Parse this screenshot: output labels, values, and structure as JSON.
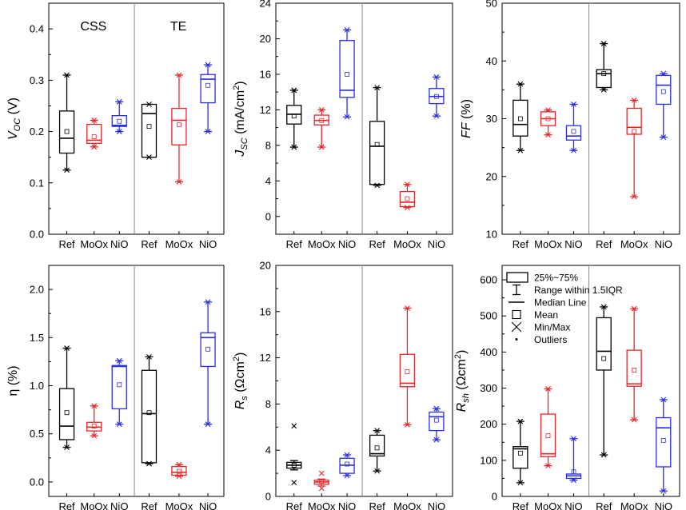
{
  "colors": {
    "Ref": "#000000",
    "MoOx": "#e8262a",
    "NiO": "#2b2ee0"
  },
  "chart_data": [
    {
      "type": "box",
      "id": "voc",
      "ylabel_main": "V",
      "ylabel_sub": "OC",
      "ylabel_unit": " (V)",
      "ylim": [
        0.0,
        0.45
      ],
      "yticks": [
        0.0,
        0.1,
        0.2,
        0.3,
        0.4
      ],
      "tick_labels": [
        "0.0",
        "0.1",
        "0.2",
        "0.3",
        "0.4"
      ],
      "divider": true,
      "group_labels": [
        "CSS",
        "TE"
      ],
      "categories": [
        "Ref",
        "MoOx",
        "NiO",
        "Ref",
        "MoOx",
        "NiO"
      ],
      "boxes": [
        {
          "cat": "Ref",
          "min": 0.125,
          "wlo": 0.125,
          "q1": 0.158,
          "median": 0.187,
          "q3": 0.24,
          "whi": 0.31,
          "max": 0.31,
          "mean": 0.2
        },
        {
          "cat": "MoOx",
          "min": 0.17,
          "wlo": 0.17,
          "q1": 0.177,
          "median": 0.183,
          "q3": 0.214,
          "whi": 0.222,
          "max": 0.222,
          "mean": 0.19
        },
        {
          "cat": "NiO",
          "min": 0.2,
          "wlo": 0.2,
          "q1": 0.21,
          "median": 0.212,
          "q3": 0.231,
          "whi": 0.258,
          "max": 0.258,
          "mean": 0.22
        },
        {
          "cat": "Ref",
          "min": 0.15,
          "wlo": 0.15,
          "q1": 0.15,
          "median": 0.235,
          "q3": 0.253,
          "whi": 0.253,
          "max": 0.253,
          "mean": 0.21
        },
        {
          "cat": "MoOx",
          "min": 0.102,
          "wlo": 0.102,
          "q1": 0.174,
          "median": 0.222,
          "q3": 0.245,
          "whi": 0.31,
          "max": 0.31,
          "mean": 0.213
        },
        {
          "cat": "NiO",
          "min": 0.2,
          "wlo": 0.2,
          "q1": 0.256,
          "median": 0.302,
          "q3": 0.311,
          "whi": 0.33,
          "max": 0.33,
          "mean": 0.29
        }
      ]
    },
    {
      "type": "box",
      "id": "jsc",
      "ylabel_main": "J",
      "ylabel_sub": "SC",
      "ylabel_unit": " (mA/cm",
      "ylabel_sup": "2",
      "ylabel_tail": ")",
      "ylim": [
        -2,
        24
      ],
      "yticks": [
        0,
        4,
        8,
        12,
        16,
        20,
        24
      ],
      "tick_labels": [
        "0",
        "4",
        "8",
        "12",
        "16",
        "20",
        "24"
      ],
      "divider": true,
      "group_labels": [],
      "categories": [
        "Ref",
        "MoOx",
        "NiO",
        "Ref",
        "MoOx",
        "NiO"
      ],
      "boxes": [
        {
          "cat": "Ref",
          "min": 7.8,
          "wlo": 7.8,
          "q1": 10.4,
          "median": 11.5,
          "q3": 12.5,
          "whi": 14.2,
          "max": 14.2,
          "mean": 11.3
        },
        {
          "cat": "MoOx",
          "min": 7.8,
          "wlo": 7.8,
          "q1": 10.3,
          "median": 10.8,
          "q3": 11.4,
          "whi": 12.0,
          "max": 12.0,
          "mean": 10.8
        },
        {
          "cat": "NiO",
          "min": 11.2,
          "wlo": 11.2,
          "q1": 13.4,
          "median": 14.2,
          "q3": 19.8,
          "whi": 21.0,
          "max": 21.0,
          "mean": 16.0
        },
        {
          "cat": "Ref",
          "min": 3.5,
          "wlo": 3.5,
          "q1": 3.6,
          "median": 7.9,
          "q3": 10.7,
          "whi": 14.5,
          "max": 14.5,
          "mean": 8.1
        },
        {
          "cat": "MoOx",
          "min": 1.0,
          "wlo": 1.0,
          "q1": 1.1,
          "median": 1.6,
          "q3": 2.8,
          "whi": 3.6,
          "max": 3.6,
          "mean": 2.0
        },
        {
          "cat": "NiO",
          "min": 11.3,
          "wlo": 11.3,
          "q1": 12.7,
          "median": 13.5,
          "q3": 14.4,
          "whi": 15.7,
          "max": 15.7,
          "mean": 13.5
        }
      ]
    },
    {
      "type": "box",
      "id": "ff",
      "ylabel_main": "FF",
      "ylabel_sub": "",
      "ylabel_unit": " (%)",
      "ylim": [
        10,
        50
      ],
      "yticks": [
        10,
        20,
        30,
        40,
        50
      ],
      "tick_labels": [
        "10",
        "20",
        "30",
        "40",
        "50"
      ],
      "divider": true,
      "group_labels": [],
      "categories": [
        "Ref",
        "MoOx",
        "NiO",
        "Ref",
        "MoOx",
        "NiO"
      ],
      "boxes": [
        {
          "cat": "Ref",
          "min": 24.5,
          "wlo": 24.5,
          "q1": 27.0,
          "median": 29.0,
          "q3": 33.2,
          "whi": 36.0,
          "max": 36.0,
          "mean": 30.0
        },
        {
          "cat": "MoOx",
          "min": 27.2,
          "wlo": 27.2,
          "q1": 28.8,
          "median": 30.0,
          "q3": 31.2,
          "whi": 31.5,
          "max": 31.5,
          "mean": 30.0
        },
        {
          "cat": "NiO",
          "min": 24.5,
          "wlo": 24.5,
          "q1": 26.3,
          "median": 27.0,
          "q3": 28.8,
          "whi": 32.5,
          "max": 32.5,
          "mean": 27.8
        },
        {
          "cat": "Ref",
          "min": 35.0,
          "wlo": 35.0,
          "q1": 35.4,
          "median": 37.8,
          "q3": 38.5,
          "whi": 43.0,
          "max": 43.0,
          "mean": 37.8
        },
        {
          "cat": "MoOx",
          "min": 16.5,
          "wlo": 16.5,
          "q1": 27.3,
          "median": 28.5,
          "q3": 31.8,
          "whi": 33.2,
          "max": 33.2,
          "mean": 27.8
        },
        {
          "cat": "NiO",
          "min": 26.8,
          "wlo": 26.8,
          "q1": 32.5,
          "median": 35.8,
          "q3": 37.5,
          "whi": 37.8,
          "max": 37.8,
          "mean": 34.7
        }
      ]
    },
    {
      "type": "box",
      "id": "eta",
      "ylabel_main": "η",
      "ylabel_sub": "",
      "ylabel_unit": " (%)",
      "ylim": [
        -0.15,
        2.25
      ],
      "yticks": [
        0.0,
        0.5,
        1.0,
        1.5,
        2.0
      ],
      "tick_labels": [
        "0.0",
        "0.5",
        "1.0",
        "1.5",
        "2.0"
      ],
      "divider": true,
      "group_labels": [],
      "categories": [
        "Ref",
        "MoOx",
        "NiO",
        "Ref",
        "MoOx",
        "NiO"
      ],
      "boxes": [
        {
          "cat": "Ref",
          "min": 0.36,
          "wlo": 0.36,
          "q1": 0.44,
          "median": 0.58,
          "q3": 0.97,
          "whi": 1.39,
          "max": 1.39,
          "mean": 0.72
        },
        {
          "cat": "MoOx",
          "min": 0.48,
          "wlo": 0.48,
          "q1": 0.53,
          "median": 0.57,
          "q3": 0.62,
          "whi": 0.79,
          "max": 0.79,
          "mean": 0.58
        },
        {
          "cat": "NiO",
          "min": 0.6,
          "wlo": 0.6,
          "q1": 0.76,
          "median": 1.2,
          "q3": 1.21,
          "whi": 1.26,
          "max": 1.26,
          "mean": 1.01
        },
        {
          "cat": "Ref",
          "min": 0.19,
          "wlo": 0.19,
          "q1": 0.2,
          "median": 0.71,
          "q3": 1.16,
          "whi": 1.3,
          "max": 1.3,
          "mean": 0.72
        },
        {
          "cat": "MoOx",
          "min": 0.06,
          "wlo": 0.06,
          "q1": 0.07,
          "median": 0.1,
          "q3": 0.16,
          "whi": 0.18,
          "max": 0.18,
          "mean": 0.11
        },
        {
          "cat": "NiO",
          "min": 0.6,
          "wlo": 0.6,
          "q1": 1.2,
          "median": 1.5,
          "q3": 1.55,
          "whi": 1.87,
          "max": 1.87,
          "mean": 1.38
        }
      ]
    },
    {
      "type": "box",
      "id": "rs",
      "ylabel_main": "R",
      "ylabel_sub": "s",
      "ylabel_unit": " (Ωcm",
      "ylabel_sup": "2",
      "ylabel_tail": ")",
      "ylim": [
        0,
        20
      ],
      "yticks": [
        0,
        4,
        8,
        12,
        16,
        20
      ],
      "tick_labels": [
        "0",
        "4",
        "8",
        "12",
        "16",
        "20"
      ],
      "divider": true,
      "group_labels": [],
      "categories": [
        "Ref",
        "MoOx",
        "NiO",
        "Ref",
        "MoOx",
        "NiO"
      ],
      "boxes": [
        {
          "cat": "Ref",
          "min": 1.2,
          "wlo": 2.3,
          "q1": 2.45,
          "median": 2.7,
          "q3": 2.95,
          "whi": 3.1,
          "max": 6.1,
          "mean": 2.7
        },
        {
          "cat": "MoOx",
          "min": 0.7,
          "wlo": 0.9,
          "q1": 1.05,
          "median": 1.25,
          "q3": 1.4,
          "whi": 1.5,
          "max": 2.0,
          "mean": 1.3
        },
        {
          "cat": "NiO",
          "min": 1.8,
          "wlo": 1.8,
          "q1": 2.0,
          "median": 2.7,
          "q3": 3.3,
          "whi": 3.6,
          "max": 3.6,
          "mean": 2.8
        },
        {
          "cat": "Ref",
          "min": 2.2,
          "wlo": 2.2,
          "q1": 3.5,
          "median": 3.7,
          "q3": 5.3,
          "whi": 5.7,
          "max": 5.7,
          "mean": 4.2
        },
        {
          "cat": "MoOx",
          "min": 6.2,
          "wlo": 6.2,
          "q1": 9.5,
          "median": 9.8,
          "q3": 12.3,
          "whi": 16.3,
          "max": 16.3,
          "mean": 10.8
        },
        {
          "cat": "NiO",
          "min": 4.9,
          "wlo": 4.9,
          "q1": 5.7,
          "median": 6.9,
          "q3": 7.3,
          "whi": 7.6,
          "max": 7.6,
          "mean": 6.6
        }
      ]
    },
    {
      "type": "box",
      "id": "rsh",
      "ylabel_main": "R",
      "ylabel_sub": "sh",
      "ylabel_unit": " (Ωcm",
      "ylabel_sup": "2",
      "ylabel_tail": ")",
      "ylim": [
        0,
        640
      ],
      "yticks": [
        0,
        100,
        200,
        300,
        400,
        500,
        600
      ],
      "tick_labels": [
        "0",
        "100",
        "200",
        "300",
        "400",
        "500",
        "600"
      ],
      "divider": true,
      "group_labels": [],
      "categories": [
        "Ref",
        "MoOx",
        "NiO",
        "Ref",
        "MoOx",
        "NiO"
      ],
      "boxes": [
        {
          "cat": "Ref",
          "min": 38,
          "wlo": 38,
          "q1": 78,
          "median": 132,
          "q3": 138,
          "whi": 208,
          "max": 208,
          "mean": 120
        },
        {
          "cat": "MoOx",
          "min": 85,
          "wlo": 85,
          "q1": 110,
          "median": 118,
          "q3": 228,
          "whi": 298,
          "max": 298,
          "mean": 168
        },
        {
          "cat": "NiO",
          "min": 45,
          "wlo": 45,
          "q1": 50,
          "median": 57,
          "q3": 62,
          "whi": 160,
          "max": 160,
          "mean": 68
        },
        {
          "cat": "Ref",
          "min": 115,
          "wlo": 115,
          "q1": 350,
          "median": 402,
          "q3": 495,
          "whi": 525,
          "max": 525,
          "mean": 382
        },
        {
          "cat": "MoOx",
          "min": 212,
          "wlo": 212,
          "q1": 305,
          "median": 312,
          "q3": 405,
          "whi": 520,
          "max": 520,
          "mean": 350
        },
        {
          "cat": "NiO",
          "min": 15,
          "wlo": 15,
          "q1": 82,
          "median": 190,
          "q3": 218,
          "whi": 268,
          "max": 268,
          "mean": 155
        }
      ]
    }
  ],
  "legend": {
    "items": [
      {
        "key": "box",
        "label": "25%~75%"
      },
      {
        "key": "range",
        "label": "Range within 1.5IQR"
      },
      {
        "key": "median",
        "label": "Median Line"
      },
      {
        "key": "mean",
        "label": "Mean"
      },
      {
        "key": "minmax",
        "label": "Min/Max"
      },
      {
        "key": "outlier",
        "label": "Outliers"
      }
    ]
  }
}
